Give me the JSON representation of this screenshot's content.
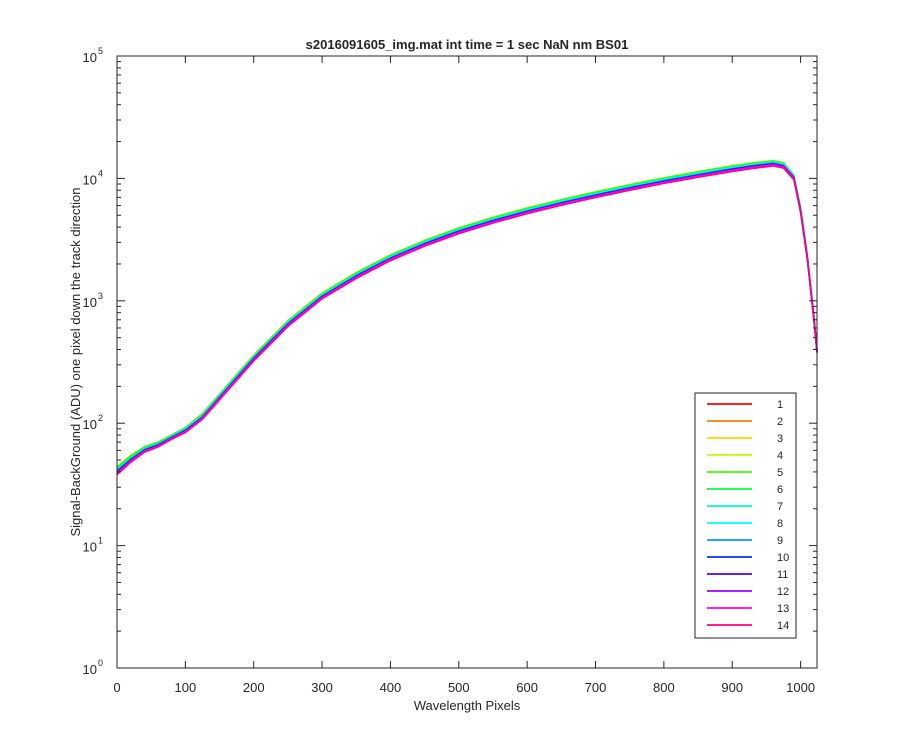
{
  "chart_data": {
    "type": "line",
    "title": "s2016091605_img.mat int time = 1 sec  NaN nm BS01",
    "xlabel": "Wavelength Pixels",
    "ylabel": "Signal-BackGround (ADU) one pixel down the track direction",
    "xlim": [
      0,
      1024
    ],
    "ylim": [
      1,
      100000
    ],
    "yscale": "log",
    "xticks": [
      0,
      100,
      200,
      300,
      400,
      500,
      600,
      700,
      800,
      900,
      1000
    ],
    "yticks": [
      {
        "value": 1,
        "base": "10",
        "exp": "0"
      },
      {
        "value": 10,
        "base": "10",
        "exp": "1"
      },
      {
        "value": 100,
        "base": "10",
        "exp": "2"
      },
      {
        "value": 1000,
        "base": "10",
        "exp": "3"
      },
      {
        "value": 10000,
        "base": "10",
        "exp": "4"
      },
      {
        "value": 100000,
        "base": "10",
        "exp": "5"
      }
    ],
    "grid": false,
    "legend_position": "lower-right",
    "x": [
      0,
      20,
      40,
      60,
      80,
      100,
      125,
      150,
      175,
      200,
      250,
      300,
      350,
      400,
      450,
      500,
      550,
      600,
      650,
      700,
      750,
      800,
      850,
      900,
      930,
      960,
      975,
      990,
      1000,
      1010,
      1020,
      1024
    ],
    "series": [
      {
        "name": "1",
        "color": "#ff0000",
        "values": [
          40,
          50,
          60,
          65,
          75,
          85,
          110,
          160,
          230,
          330,
          630,
          1060,
          1560,
          2170,
          2850,
          3600,
          4400,
          5250,
          6150,
          7100,
          8150,
          9250,
          10400,
          11600,
          12300,
          12900,
          12400,
          10000,
          5400,
          2200,
          650,
          380
        ]
      },
      {
        "name": "2",
        "color": "#ff7f00",
        "values": [
          40,
          50,
          60,
          65,
          75,
          86,
          112,
          162,
          233,
          335,
          640,
          1075,
          1580,
          2200,
          2890,
          3650,
          4460,
          5320,
          6230,
          7200,
          8260,
          9380,
          10550,
          11750,
          12450,
          13050,
          12550,
          10100,
          5450,
          2220,
          660,
          385
        ]
      },
      {
        "name": "3",
        "color": "#ffd700",
        "values": [
          42,
          52,
          62,
          67,
          77,
          88,
          115,
          166,
          240,
          345,
          660,
          1110,
          1630,
          2270,
          2980,
          3770,
          4600,
          5490,
          6430,
          7430,
          8520,
          9680,
          10900,
          12150,
          12850,
          13500,
          12950,
          10400,
          5600,
          2280,
          680,
          395
        ]
      },
      {
        "name": "4",
        "color": "#bfff00",
        "values": [
          44,
          55,
          64,
          70,
          80,
          92,
          120,
          173,
          250,
          360,
          690,
          1160,
          1710,
          2380,
          3120,
          3950,
          4820,
          5750,
          6730,
          7780,
          8920,
          10140,
          11400,
          12700,
          13400,
          14000,
          13400,
          10700,
          5750,
          2340,
          700,
          405
        ]
      },
      {
        "name": "5",
        "color": "#40ff00",
        "values": [
          44,
          54,
          64,
          70,
          80,
          92,
          119,
          172,
          248,
          357,
          685,
          1150,
          1690,
          2360,
          3100,
          3920,
          4780,
          5700,
          6680,
          7720,
          8850,
          10050,
          11300,
          12600,
          13300,
          13900,
          13300,
          10650,
          5720,
          2330,
          695,
          402
        ]
      },
      {
        "name": "6",
        "color": "#00ff40",
        "values": [
          43,
          53,
          63,
          69,
          79,
          91,
          117,
          170,
          245,
          352,
          675,
          1135,
          1670,
          2330,
          3060,
          3870,
          4720,
          5630,
          6600,
          7620,
          8740,
          9930,
          11150,
          12450,
          13150,
          13750,
          13150,
          10550,
          5680,
          2310,
          690,
          400
        ]
      },
      {
        "name": "7",
        "color": "#00ffbf",
        "values": [
          42,
          52,
          62,
          68,
          78,
          90,
          116,
          168,
          242,
          348,
          668,
          1122,
          1650,
          2300,
          3020,
          3820,
          4660,
          5560,
          6520,
          7530,
          8640,
          9820,
          11030,
          12300,
          13000,
          13600,
          13000,
          10450,
          5630,
          2290,
          685,
          398
        ]
      },
      {
        "name": "8",
        "color": "#00ffff",
        "values": [
          41,
          51,
          61,
          67,
          77,
          89,
          114,
          165,
          238,
          343,
          658,
          1105,
          1625,
          2265,
          2975,
          3765,
          4590,
          5480,
          6420,
          7420,
          8510,
          9670,
          10870,
          12120,
          12800,
          13400,
          12820,
          10320,
          5560,
          2260,
          675,
          392
        ]
      },
      {
        "name": "9",
        "color": "#0099ff",
        "values": [
          41,
          51,
          61,
          67,
          77,
          88,
          113,
          164,
          236,
          340,
          652,
          1095,
          1610,
          2245,
          2950,
          3730,
          4550,
          5430,
          6360,
          7350,
          8430,
          9580,
          10770,
          12000,
          12700,
          13300,
          12750,
          10250,
          5520,
          2245,
          670,
          390
        ]
      },
      {
        "name": "10",
        "color": "#0033ff",
        "values": [
          40,
          50,
          60,
          66,
          76,
          87,
          112,
          162,
          234,
          337,
          646,
          1085,
          1595,
          2225,
          2920,
          3695,
          4510,
          5380,
          6300,
          7280,
          8350,
          9490,
          10670,
          11900,
          12600,
          13200,
          12650,
          10200,
          5490,
          2235,
          667,
          388
        ]
      },
      {
        "name": "11",
        "color": "#4000ff",
        "values": [
          40,
          50,
          60,
          66,
          76,
          87,
          112,
          161,
          232,
          334,
          641,
          1077,
          1583,
          2207,
          2898,
          3667,
          4475,
          5340,
          6255,
          7228,
          8290,
          9420,
          10590,
          11810,
          12500,
          13100,
          12560,
          10120,
          5450,
          2220,
          662,
          386
        ]
      },
      {
        "name": "12",
        "color": "#9f00ff",
        "values": [
          39,
          49,
          59,
          65,
          75,
          86,
          111,
          160,
          230,
          331,
          636,
          1068,
          1570,
          2190,
          2875,
          3637,
          4440,
          5298,
          6205,
          7170,
          8225,
          9345,
          10505,
          11715,
          12400,
          13000,
          12460,
          10040,
          5410,
          2205,
          658,
          384
        ]
      },
      {
        "name": "13",
        "color": "#ff00ff",
        "values": [
          39,
          49,
          59,
          65,
          75,
          85,
          110,
          158,
          228,
          328,
          630,
          1058,
          1555,
          2170,
          2850,
          3605,
          4400,
          5250,
          6150,
          7105,
          8150,
          9260,
          10410,
          11610,
          12290,
          12880,
          12350,
          9950,
          5360,
          2185,
          652,
          381
        ]
      },
      {
        "name": "14",
        "color": "#ff0080",
        "values": [
          38,
          48,
          58,
          64,
          74,
          84,
          108,
          155,
          224,
          322,
          618,
          1040,
          1528,
          2132,
          2800,
          3542,
          4323,
          5158,
          6042,
          6982,
          8010,
          9100,
          10230,
          11410,
          12080,
          12660,
          12140,
          9780,
          5270,
          2150,
          642,
          376
        ]
      }
    ]
  }
}
